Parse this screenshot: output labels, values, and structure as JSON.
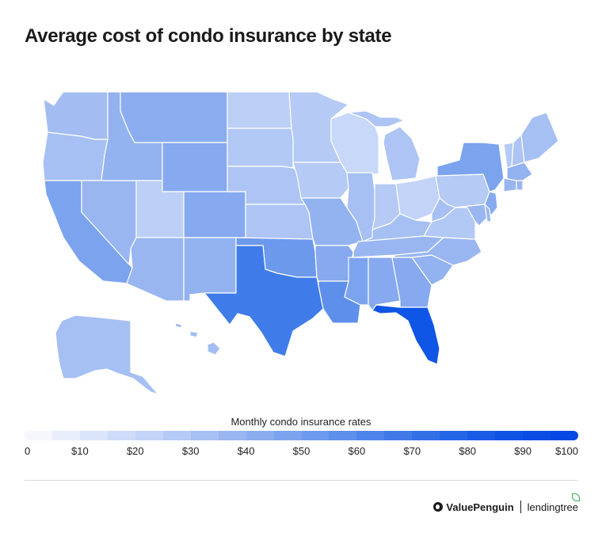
{
  "title": "Average cost of condo insurance by state",
  "legend": {
    "title": "Monthly condo insurance rates",
    "ticks": [
      "0",
      "$10",
      "$20",
      "$30",
      "$40",
      "$50",
      "$60",
      "$70",
      "$80",
      "$90",
      "$100"
    ],
    "range": [
      0,
      100
    ],
    "colors": [
      "#f5f7fd",
      "#e8eefb",
      "#dbe5fa",
      "#cfdcf8",
      "#c2d3f7",
      "#b5caf5",
      "#a7c0f3",
      "#99b6f1",
      "#8badef",
      "#7ca3ee",
      "#6d99ec",
      "#5e8feb",
      "#4f85ea",
      "#417ae8",
      "#3370e8",
      "#2566e7",
      "#1a5ce7",
      "#0f52e6",
      "#0a4ce4",
      "#0548e3"
    ]
  },
  "states": [
    {
      "code": "WA",
      "fill": "#a3bdf2"
    },
    {
      "code": "OR",
      "fill": "#a7c0f3"
    },
    {
      "code": "CA",
      "fill": "#7ca3ee"
    },
    {
      "code": "NV",
      "fill": "#99b6f1"
    },
    {
      "code": "ID",
      "fill": "#93b2f0"
    },
    {
      "code": "MT",
      "fill": "#8badef"
    },
    {
      "code": "WY",
      "fill": "#86a9ef"
    },
    {
      "code": "UT",
      "fill": "#bccff6"
    },
    {
      "code": "AZ",
      "fill": "#99b6f1"
    },
    {
      "code": "CO",
      "fill": "#86a9ef"
    },
    {
      "code": "NM",
      "fill": "#93b2f0"
    },
    {
      "code": "ND",
      "fill": "#bccff6"
    },
    {
      "code": "SD",
      "fill": "#b2c8f5"
    },
    {
      "code": "NE",
      "fill": "#adc4f4"
    },
    {
      "code": "KS",
      "fill": "#adc4f4"
    },
    {
      "code": "OK",
      "fill": "#6d99ec"
    },
    {
      "code": "TX",
      "fill": "#3f7ce9"
    },
    {
      "code": "MN",
      "fill": "#b5caf5"
    },
    {
      "code": "IA",
      "fill": "#b5caf5"
    },
    {
      "code": "MO",
      "fill": "#93b2f0"
    },
    {
      "code": "AR",
      "fill": "#86a9ef"
    },
    {
      "code": "LA",
      "fill": "#5e8feb"
    },
    {
      "code": "WI",
      "fill": "#c8d8f8"
    },
    {
      "code": "IL",
      "fill": "#a7c0f3"
    },
    {
      "code": "MI",
      "fill": "#adc4f4"
    },
    {
      "code": "IN",
      "fill": "#b5caf5"
    },
    {
      "code": "OH",
      "fill": "#c2d3f7"
    },
    {
      "code": "KY",
      "fill": "#a7c0f3"
    },
    {
      "code": "TN",
      "fill": "#99b6f1"
    },
    {
      "code": "MS",
      "fill": "#7ca3ee"
    },
    {
      "code": "AL",
      "fill": "#86a9ef"
    },
    {
      "code": "GA",
      "fill": "#86a9ef"
    },
    {
      "code": "FL",
      "fill": "#0f56e6"
    },
    {
      "code": "SC",
      "fill": "#93b2f0"
    },
    {
      "code": "NC",
      "fill": "#99b6f1"
    },
    {
      "code": "VA",
      "fill": "#b2c8f5"
    },
    {
      "code": "WV",
      "fill": "#a7c0f3"
    },
    {
      "code": "PA",
      "fill": "#b5caf5"
    },
    {
      "code": "NY",
      "fill": "#7ca3ee"
    },
    {
      "code": "NJ",
      "fill": "#86a9ef"
    },
    {
      "code": "MD",
      "fill": "#99b6f1"
    },
    {
      "code": "DE",
      "fill": "#99b6f1"
    },
    {
      "code": "VT",
      "fill": "#b5caf5"
    },
    {
      "code": "NH",
      "fill": "#adc4f4"
    },
    {
      "code": "ME",
      "fill": "#a7c0f3"
    },
    {
      "code": "MA",
      "fill": "#93b2f0"
    },
    {
      "code": "CT",
      "fill": "#99b6f1"
    },
    {
      "code": "RI",
      "fill": "#99b6f1"
    },
    {
      "code": "AK",
      "fill": "#a7c0f3"
    },
    {
      "code": "HI",
      "fill": "#a3bdf2"
    }
  ],
  "branding": {
    "valuepenguin": "ValuePenguin",
    "lendingtree": "lendingtree",
    "leaf_color": "#3aa655"
  }
}
